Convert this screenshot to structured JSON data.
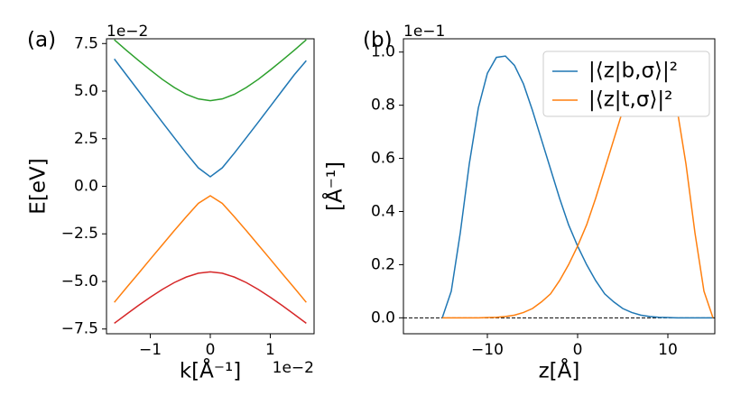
{
  "chart_data": [
    {
      "type": "line",
      "panel_label": "(a)",
      "y_label": "E[eV]",
      "x_label": "k[Å⁻¹]",
      "y_offset_label": "1e−2",
      "x_offset_label": "1e−2",
      "xlim": [
        -1.73,
        1.73
      ],
      "ylim": [
        -7.75,
        7.75
      ],
      "xticks": [
        {
          "value": -1,
          "label": "−1"
        },
        0,
        1
      ],
      "yticks": [
        {
          "value": -7.5,
          "label": "−7.5"
        },
        {
          "value": -5,
          "label": "−5.0"
        },
        {
          "value": -2.5,
          "label": "−2.5"
        },
        {
          "value": 0,
          "label": "0.0"
        },
        2.5,
        {
          "value": 5,
          "label": "5.0"
        },
        7.5
      ],
      "x": [
        -1.6,
        -1.4,
        -1.2,
        -1.0,
        -0.8,
        -0.6,
        -0.4,
        -0.2,
        0,
        0.2,
        0.4,
        0.6,
        0.8,
        1.0,
        1.2,
        1.4,
        1.6
      ],
      "series": [
        {
          "color": "#2ca02c",
          "values": [
            7.7,
            7.15,
            6.62,
            6.11,
            5.62,
            5.19,
            4.83,
            4.59,
            4.5,
            4.59,
            4.83,
            5.19,
            5.62,
            6.11,
            6.62,
            7.15,
            7.7
          ]
        },
        {
          "color": "#1f77b4",
          "values": [
            6.69,
            5.86,
            5.03,
            4.2,
            3.37,
            2.55,
            1.74,
            0.97,
            0.5,
            0.97,
            1.74,
            2.55,
            3.37,
            4.2,
            5.03,
            5.86,
            6.6
          ]
        },
        {
          "color": "#ff7f0e",
          "values": [
            -6.1,
            -5.34,
            -4.59,
            -3.83,
            -3.08,
            -2.33,
            -1.6,
            -0.9,
            -0.5,
            -0.9,
            -1.6,
            -2.33,
            -3.08,
            -3.83,
            -4.59,
            -5.34,
            -6.1
          ]
        },
        {
          "color": "#d62728",
          "values": [
            -7.2,
            -6.73,
            -6.27,
            -5.83,
            -5.42,
            -5.06,
            -4.77,
            -4.57,
            -4.5,
            -4.57,
            -4.77,
            -5.06,
            -5.42,
            -5.83,
            -6.27,
            -6.73,
            -7.2
          ]
        }
      ]
    },
    {
      "type": "line",
      "panel_label": "(b)",
      "y_label": "[Å⁻¹]",
      "x_label": "z[Å]",
      "y_offset_label": "1e−1",
      "legend": "upper right",
      "hline": 0,
      "xlim": [
        -19.3,
        15.2
      ],
      "ylim": [
        -0.06,
        1.05
      ],
      "xticks": [
        {
          "value": -10,
          "label": "−10"
        },
        0,
        10
      ],
      "yticks": [
        {
          "value": 0,
          "label": "0.0"
        },
        0.2,
        0.4,
        0.6,
        0.8,
        {
          "value": 1,
          "label": "1.0"
        }
      ],
      "x": [
        -15,
        -14,
        -13,
        -12,
        -11,
        -10,
        -9,
        -8,
        -7,
        -6,
        -5,
        -4,
        -3,
        -2,
        -1,
        0,
        1,
        2,
        3,
        4,
        5,
        6,
        7,
        8,
        9,
        10,
        11,
        12,
        13,
        14,
        15
      ],
      "series": [
        {
          "name": "|⟨z|b,σ⟩|²",
          "color": "#1f77b4",
          "values": [
            0,
            0.1,
            0.32,
            0.58,
            0.79,
            0.92,
            0.98,
            0.985,
            0.95,
            0.88,
            0.78,
            0.67,
            0.56,
            0.45,
            0.35,
            0.27,
            0.2,
            0.14,
            0.09,
            0.06,
            0.035,
            0.02,
            0.01,
            0.005,
            0.002,
            0.001,
            0,
            0,
            0,
            0,
            0
          ]
        },
        {
          "name": "|⟨z|t,σ⟩|²",
          "color": "#ff7f0e",
          "values": [
            0,
            0,
            0,
            0,
            0,
            0.001,
            0.002,
            0.005,
            0.01,
            0.02,
            0.035,
            0.06,
            0.09,
            0.14,
            0.2,
            0.27,
            0.35,
            0.45,
            0.56,
            0.67,
            0.78,
            0.88,
            0.95,
            0.985,
            0.98,
            0.92,
            0.79,
            0.58,
            0.32,
            0.1,
            0
          ]
        }
      ]
    }
  ]
}
